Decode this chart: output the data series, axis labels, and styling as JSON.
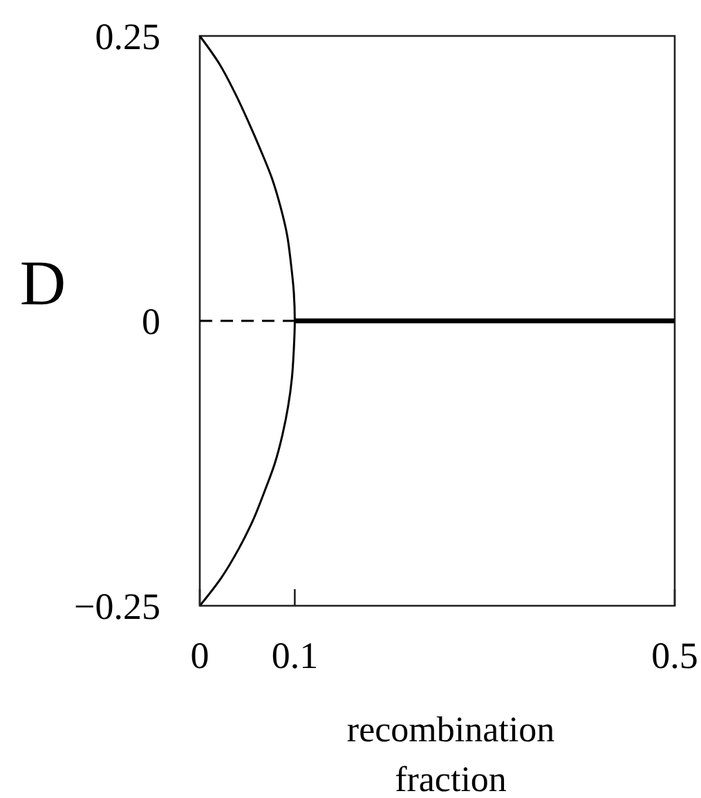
{
  "chart_data": {
    "type": "line",
    "xlabel": "recombination fraction",
    "ylabel": "D",
    "xlim": [
      0,
      0.5
    ],
    "xticks": [
      0,
      0.1,
      0.5
    ],
    "ylim": [
      -0.25,
      0.25
    ],
    "yticks": [
      {
        "value": -0.25,
        "label": "−0.25"
      },
      0,
      0.25
    ],
    "series": [
      {
        "color": "#000000",
        "line_style": "solid",
        "x": [
          0,
          0.021,
          0.037,
          0.051,
          0.064,
          0.076,
          0.085,
          0.092,
          0.096,
          0.099,
          0.1,
          0.099,
          0.097,
          0.093,
          0.087,
          0.079,
          0.068,
          0.056,
          0.041,
          0.023,
          0
        ],
        "values": [
          0.25,
          0.225,
          0.2,
          0.175,
          0.15,
          0.125,
          0.1,
          0.075,
          0.05,
          0.025,
          0,
          -0.025,
          -0.05,
          -0.075,
          -0.1,
          -0.125,
          -0.15,
          -0.175,
          -0.2,
          -0.225,
          -0.25
        ]
      },
      {
        "color": "#000000",
        "line_style": "dashed",
        "x": [
          0,
          0.1
        ],
        "values": [
          0,
          0
        ]
      },
      {
        "color": "#000000",
        "line_style": "solid",
        "x": [
          0.1,
          0.5
        ],
        "values": [
          0,
          0
        ]
      }
    ]
  }
}
